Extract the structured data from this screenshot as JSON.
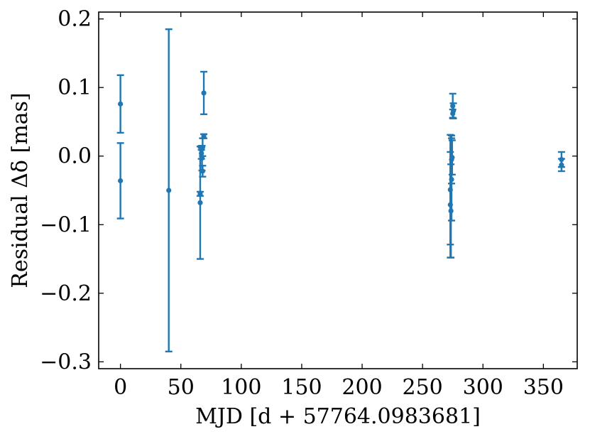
{
  "chart_data": {
    "type": "scatter",
    "title": "",
    "xlabel": "MJD [d + 57764.0983681]",
    "ylabel": "Residual Δδ [mas]",
    "xlim": [
      -18,
      378
    ],
    "ylim": [
      -0.31,
      0.21
    ],
    "xticks": [
      0,
      50,
      100,
      150,
      200,
      250,
      300,
      350
    ],
    "xtick_labels": [
      "0",
      "50",
      "100",
      "150",
      "200",
      "250",
      "300",
      "350"
    ],
    "yticks": [
      -0.3,
      -0.2,
      -0.1,
      0.0,
      0.1,
      0.2
    ],
    "ytick_labels": [
      "−0.3",
      "−0.2",
      "−0.1",
      "0.0",
      "0.1",
      "0.2"
    ],
    "grid": false,
    "legend": "none",
    "color": "#1f77b4",
    "series": [
      {
        "points": [
          {
            "x": 0,
            "y": 0.076,
            "err": 0.042
          },
          {
            "x": 0,
            "y": -0.036,
            "err": 0.055
          },
          {
            "x": 40,
            "y": -0.05,
            "err": 0.235
          },
          {
            "x": 66,
            "y": -0.068,
            "err": 0.082
          },
          {
            "x": 66,
            "y": -0.055,
            "err": 0.003
          },
          {
            "x": 67,
            "y": 0.012,
            "err": 0.003
          },
          {
            "x": 67,
            "y": 0.004,
            "err": 0.008
          },
          {
            "x": 67.5,
            "y": -0.003,
            "err": 0.018
          },
          {
            "x": 68,
            "y": -0.022,
            "err": 0.008
          },
          {
            "x": 68,
            "y": 0.013,
            "err": 0.013
          },
          {
            "x": 69,
            "y": 0.029,
            "err": 0.003
          },
          {
            "x": 69,
            "y": 0.092,
            "err": 0.031
          },
          {
            "x": 273,
            "y": -0.049,
            "err": 0.08
          },
          {
            "x": 273,
            "y": -0.071,
            "err": 0.077
          },
          {
            "x": 273.5,
            "y": -0.08,
            "err": 0.068
          },
          {
            "x": 274,
            "y": -0.034,
            "err": 0.06
          },
          {
            "x": 274,
            "y": -0.005,
            "err": 0.035
          },
          {
            "x": 274.5,
            "y": -0.002,
            "err": 0.025
          },
          {
            "x": 275,
            "y": 0.073,
            "err": 0.018
          },
          {
            "x": 275,
            "y": 0.062,
            "err": 0.006
          },
          {
            "x": 275.5,
            "y": 0.066,
            "err": 0.011
          },
          {
            "x": 365,
            "y": -0.005,
            "err": 0.011
          },
          {
            "x": 365,
            "y": -0.013,
            "err": 0.009
          }
        ]
      }
    ]
  }
}
